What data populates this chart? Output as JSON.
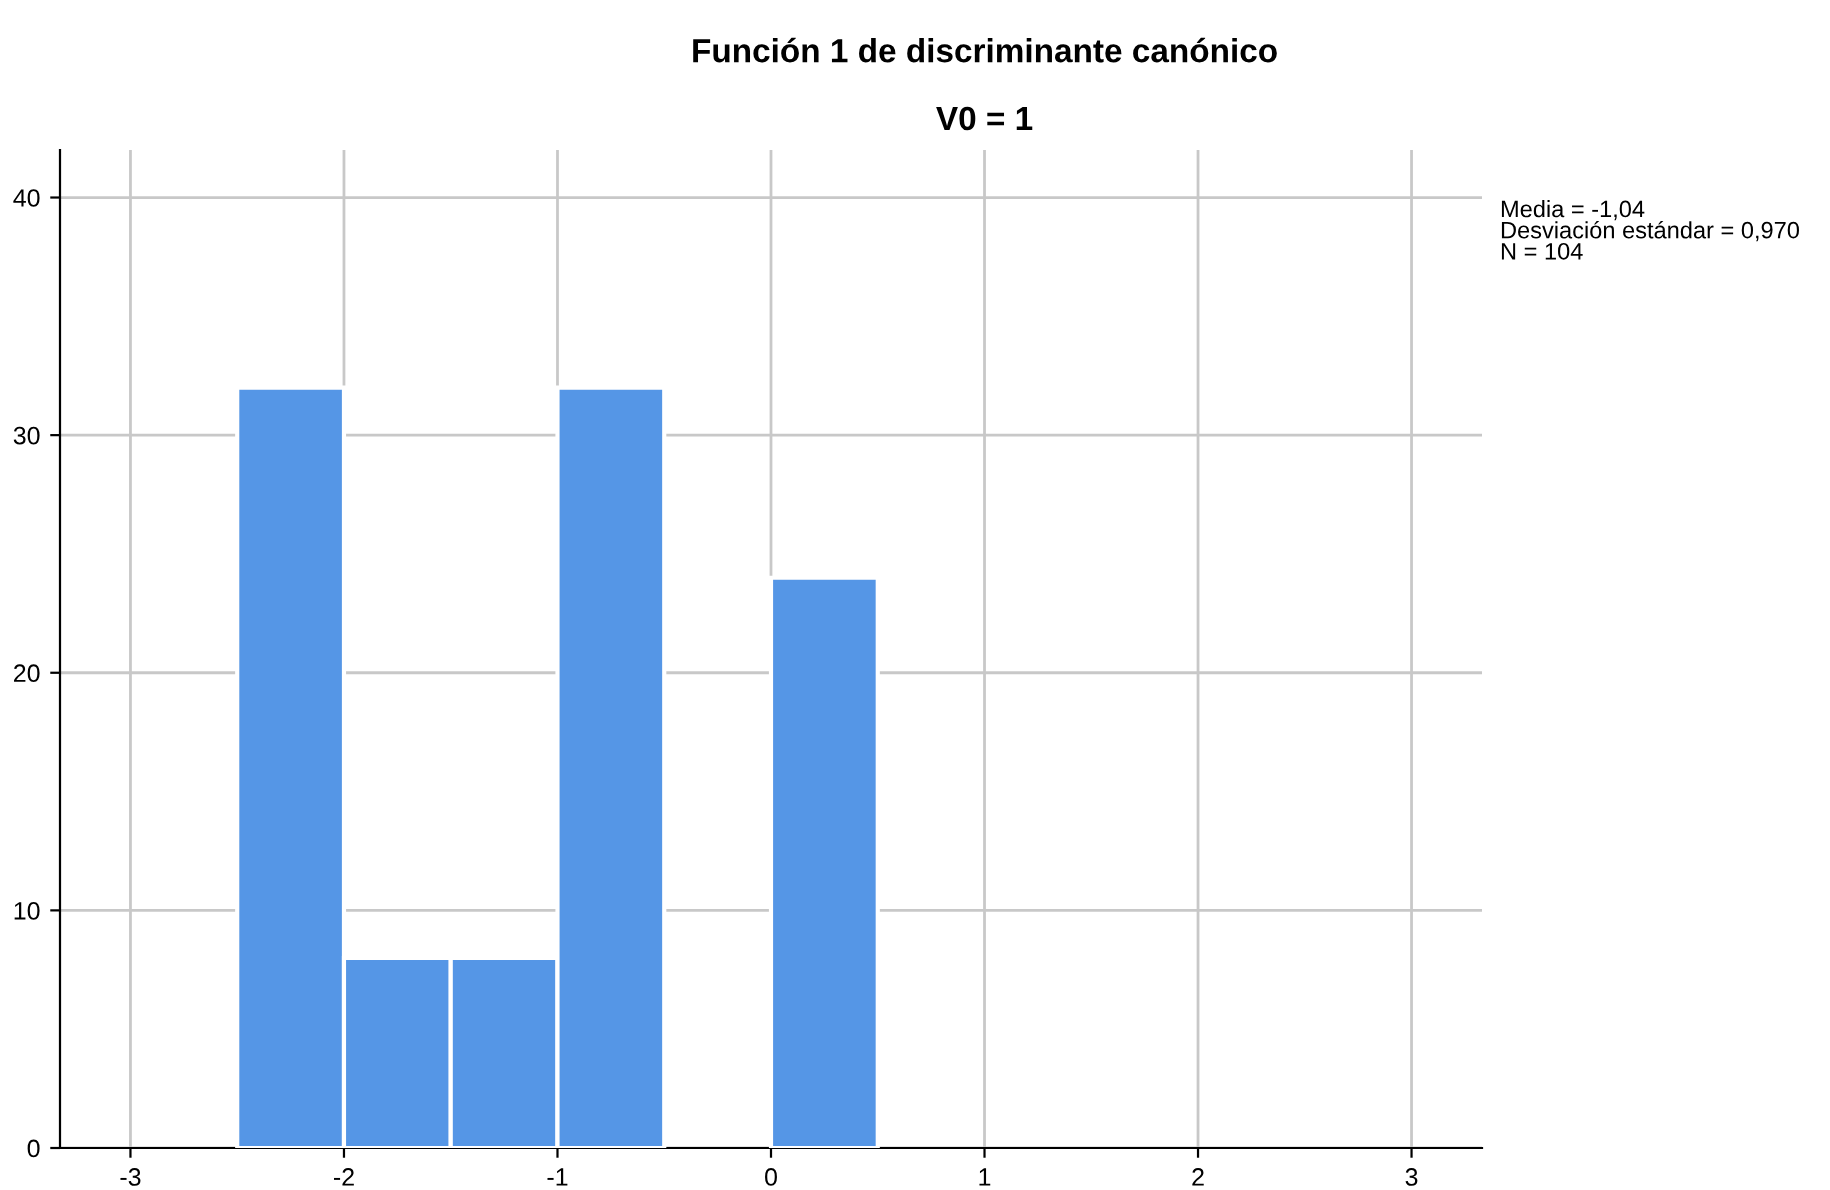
{
  "chart_data": {
    "type": "histogram",
    "title": "Función 1 de discriminante canónico",
    "subtitle": "V0 = 1",
    "bins": [
      -2.5,
      -2.0,
      -1.5,
      -1.0,
      -0.5,
      0.0,
      0.5
    ],
    "values": [
      32,
      8,
      8,
      32,
      0,
      24
    ],
    "color": "#5596e6",
    "xlim": [
      -3.33,
      3.33
    ],
    "xticks": [
      -3,
      -2,
      -1,
      0,
      1,
      2,
      3
    ],
    "ylim": [
      0,
      42
    ],
    "yticks": [
      0,
      10,
      20,
      30,
      40
    ],
    "grid": true,
    "annotations": [
      "Media = -1,04\nDesviación estándar = 0,970\nN = 104"
    ]
  }
}
